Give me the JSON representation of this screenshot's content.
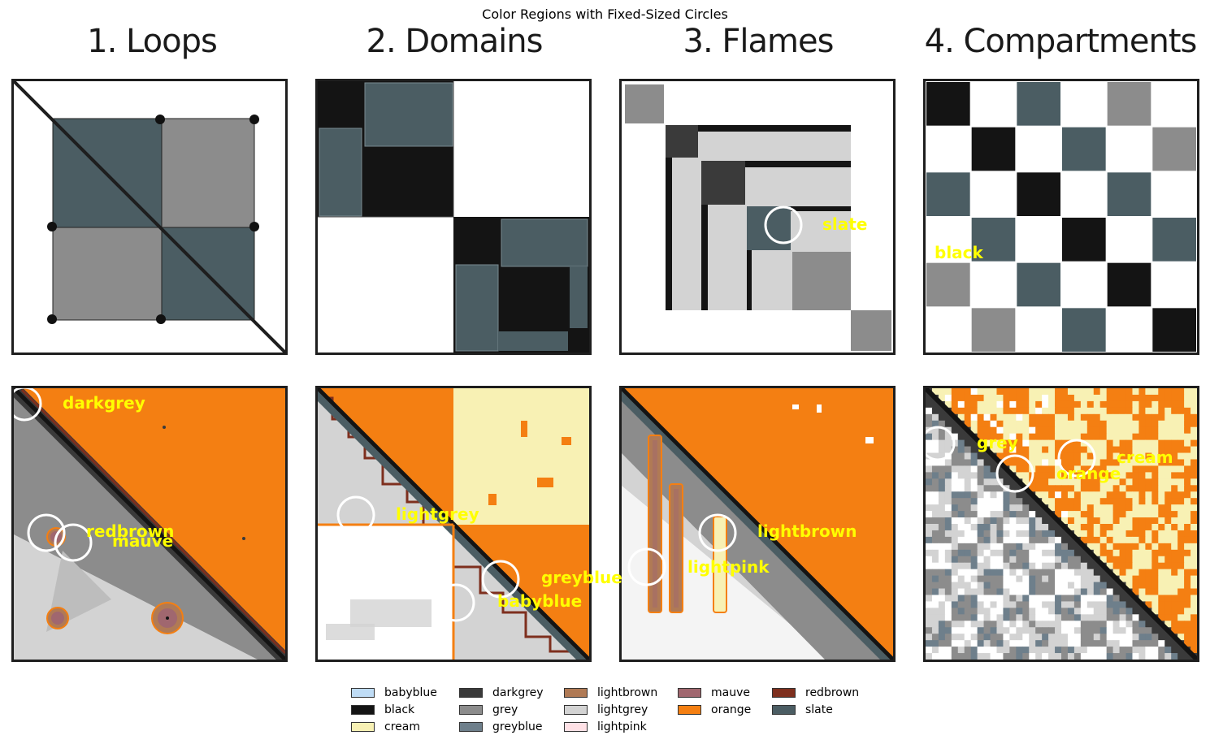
{
  "figure": {
    "title": "Color Regions with Fixed-Sized Circles"
  },
  "panels": [
    {
      "title": "1. Loops"
    },
    {
      "title": "2. Domains"
    },
    {
      "title": "3. Flames"
    },
    {
      "title": "4. Compartments"
    }
  ],
  "top_labels": [
    "slate",
    "black"
  ],
  "bottom_labels": [
    "darkgrey",
    "redbrown",
    "mauve",
    "lightgrey",
    "greyblue",
    "babyblue",
    "lightbrown",
    "lightpink",
    "grey",
    "orange",
    "cream"
  ],
  "legend": [
    {
      "label": "babyblue",
      "color": "#bfdcf5"
    },
    {
      "label": "black",
      "color": "#141414"
    },
    {
      "label": "cream",
      "color": "#f8f1b4"
    },
    {
      "label": "darkgrey",
      "color": "#3a3a3a"
    },
    {
      "label": "grey",
      "color": "#8c8c8c"
    },
    {
      "label": "greyblue",
      "color": "#6e7f8b"
    },
    {
      "label": "lightbrown",
      "color": "#b07a55"
    },
    {
      "label": "lightgrey",
      "color": "#d3d3d3"
    },
    {
      "label": "lightpink",
      "color": "#ffe1e6"
    },
    {
      "label": "mauve",
      "color": "#a0676f"
    },
    {
      "label": "orange",
      "color": "#f47f12"
    },
    {
      "label": "redbrown",
      "color": "#7e2f1e"
    },
    {
      "label": "slate",
      "color": "#4b5d63"
    }
  ]
}
